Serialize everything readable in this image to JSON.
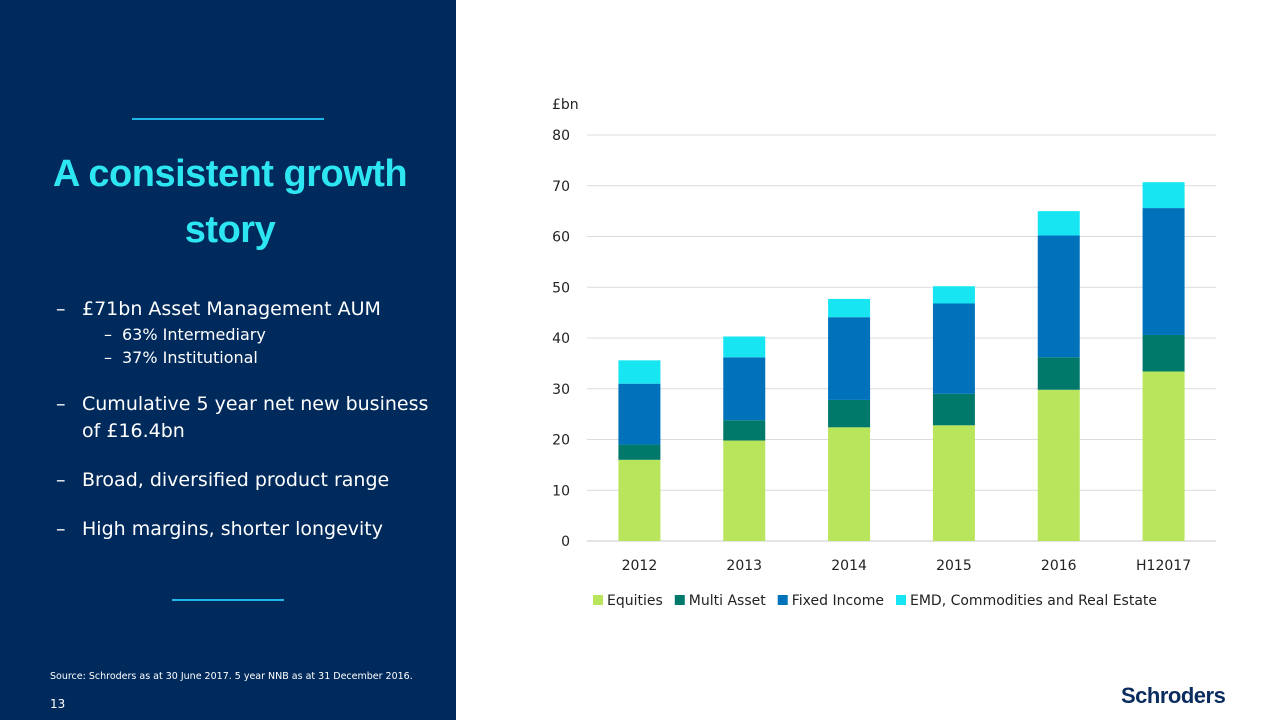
{
  "slide": {
    "headline": "A consistent growth story",
    "bullets": [
      {
        "text": "£71bn Asset Management AUM",
        "sub": [
          "63% Intermediary",
          "37% Institutional"
        ]
      },
      {
        "text": "Cumulative 5 year net new business of £16.4bn"
      },
      {
        "text": "Broad, diversified product range"
      },
      {
        "text": "High margins, shorter longevity"
      }
    ],
    "dash": "–",
    "source": "Source: Schroders as at 30 June 2017. 5 year NNB as at 31 December 2016.",
    "page_number": "13",
    "logo": "Schroders",
    "colors": {
      "panel": "#002a5c",
      "accent": "#2ee6f2",
      "rule": "#1fb6e8"
    }
  },
  "chart_data": {
    "type": "bar",
    "stacked": true,
    "unit_label": "£bn",
    "categories": [
      "2012",
      "2013",
      "2014",
      "2015",
      "2016",
      "H12017"
    ],
    "ylim": [
      0,
      80
    ],
    "yticks": [
      0,
      10,
      20,
      30,
      40,
      50,
      60,
      70,
      80
    ],
    "grid": true,
    "legend_position": "bottom",
    "series": [
      {
        "name": "Equities",
        "color": "#b8e55c",
        "values": [
          16,
          19.8,
          22.4,
          22.8,
          29.8,
          33.4
        ]
      },
      {
        "name": "Multi Asset",
        "color": "#00796b",
        "values": [
          3,
          4,
          5.4,
          6.2,
          6.4,
          7.2
        ]
      },
      {
        "name": "Fixed Income",
        "color": "#0072bc",
        "values": [
          12,
          12.4,
          16.3,
          17.8,
          24,
          25
        ]
      },
      {
        "name": "EMD, Commodities and Real Estate",
        "color": "#17e6f2",
        "values": [
          4.6,
          4.1,
          3.6,
          3.4,
          4.8,
          5.1
        ]
      }
    ]
  }
}
